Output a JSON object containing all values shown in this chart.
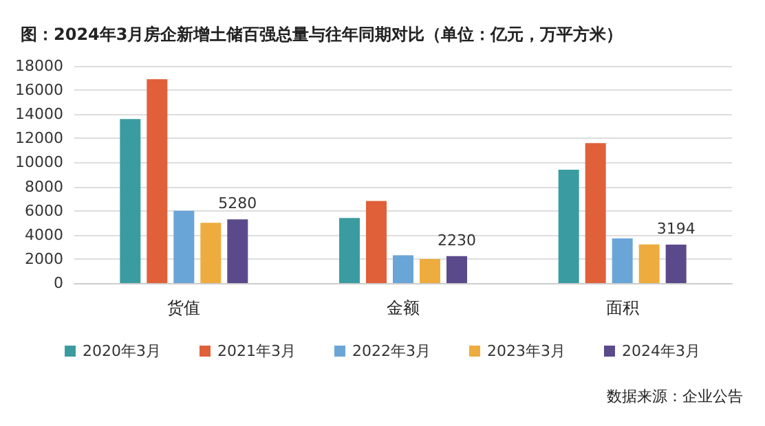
{
  "chart_data": {
    "type": "bar",
    "title": "图：2024年3月房企新增土储百强总量与往年同期对比（单位：亿元，万平方米）",
    "categories": [
      "货值",
      "金额",
      "面积"
    ],
    "series": [
      {
        "name": "2020年3月",
        "color": "#3a9ca0",
        "values": [
          13600,
          5400,
          9400
        ]
      },
      {
        "name": "2021年3月",
        "color": "#e0603a",
        "values": [
          16900,
          6800,
          11600
        ]
      },
      {
        "name": "2022年3月",
        "color": "#6aa5d8",
        "values": [
          6000,
          2300,
          3700
        ]
      },
      {
        "name": "2023年3月",
        "color": "#eeac3e",
        "values": [
          5000,
          2000,
          3200
        ]
      },
      {
        "name": "2024年3月",
        "color": "#5b4a8b",
        "values": [
          5280,
          2230,
          3194
        ],
        "value_labels": [
          "5280",
          "2230",
          "3194"
        ]
      }
    ],
    "ylim": [
      0,
      18000
    ],
    "yticks": [
      0,
      2000,
      4000,
      6000,
      8000,
      10000,
      12000,
      14000,
      16000,
      18000
    ],
    "grid": "y",
    "legend": "bottom",
    "annotations": [
      "数据来源：企业公告"
    ]
  }
}
